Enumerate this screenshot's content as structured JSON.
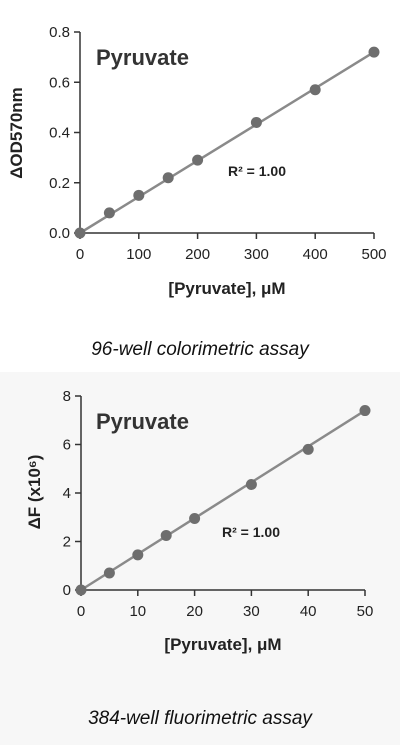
{
  "charts": [
    {
      "caption": "96-well colorimetric assay",
      "chart_data": {
        "type": "scatter",
        "title": "Pyruvate",
        "annotation": "R² = 1.00",
        "xlabel": "[Pyruvate], μM",
        "ylabel": "ΔOD570nm",
        "xlim": [
          0,
          500
        ],
        "ylim": [
          0,
          0.8
        ],
        "x_ticks": [
          "0",
          "100",
          "200",
          "300",
          "400",
          "500"
        ],
        "y_ticks": [
          "0.0",
          "0.2",
          "0.4",
          "0.6",
          "0.8"
        ],
        "fit_line": {
          "x": [
            0,
            500
          ],
          "y": [
            0,
            0.72
          ]
        },
        "series": [
          {
            "x": [
              0,
              50,
              100,
              150,
              200,
              300,
              400,
              500
            ],
            "y": [
              0.0,
              0.08,
              0.15,
              0.22,
              0.29,
              0.44,
              0.57,
              0.72
            ]
          }
        ]
      }
    },
    {
      "caption": "384-well fluorimetric assay",
      "chart_data": {
        "type": "scatter",
        "title": "Pyruvate",
        "annotation": "R² = 1.00",
        "xlabel": "[Pyruvate], μM",
        "ylabel": "ΔF (x10⁶)",
        "xlim": [
          0,
          50
        ],
        "ylim": [
          0,
          8
        ],
        "x_ticks": [
          "0",
          "10",
          "20",
          "30",
          "40",
          "50"
        ],
        "y_ticks": [
          "0",
          "2",
          "4",
          "6",
          "8"
        ],
        "fit_line": {
          "x": [
            0,
            50
          ],
          "y": [
            0,
            7.4
          ]
        },
        "series": [
          {
            "x": [
              0,
              5,
              10,
              15,
              20,
              30,
              40,
              50
            ],
            "y": [
              0.0,
              0.7,
              1.45,
              2.25,
              2.95,
              4.35,
              5.8,
              7.4
            ]
          }
        ]
      }
    }
  ],
  "colors": {
    "marker": "#6e6e6e",
    "line": "#8a8a8a",
    "axis": "#333333"
  }
}
